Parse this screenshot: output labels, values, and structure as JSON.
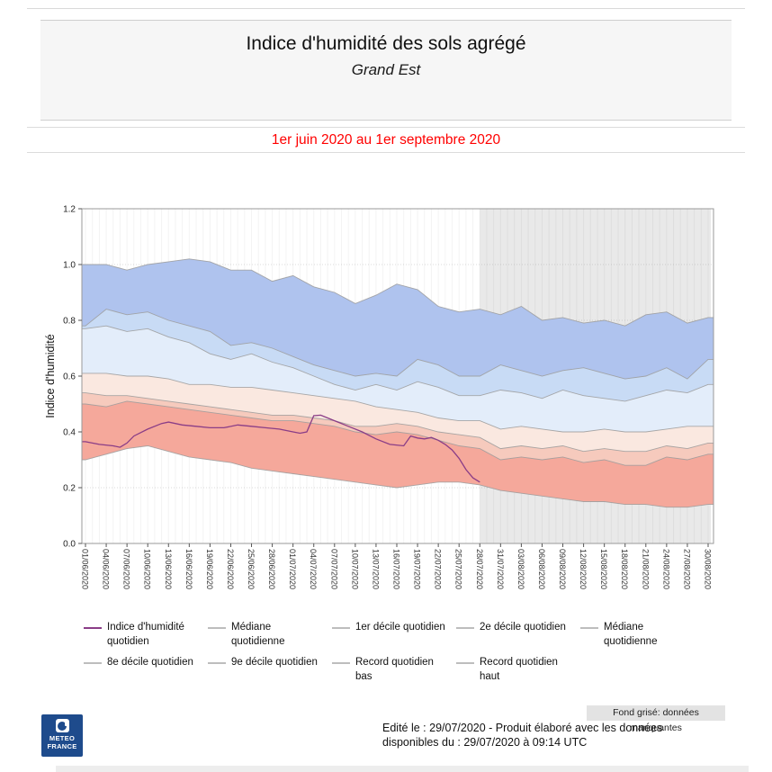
{
  "header": {
    "title": "Indice d'humidité des sols agrégé",
    "subtitle": "Grand Est",
    "period": "1er juin 2020 au 1er septembre 2020"
  },
  "chart_data": {
    "type": "area",
    "title": "Indice d'humidité des sols agrégé - Grand Est",
    "ylabel": "Indice d'humidité",
    "ylim": [
      0,
      1.2
    ],
    "y_tick_labels": [
      "0.0",
      "0.2",
      "0.4",
      "0.6",
      "0.8",
      "1.0",
      "1.2"
    ],
    "x_tick_labels": [
      "01/06/2020",
      "04/06/2020",
      "07/06/2020",
      "10/06/2020",
      "13/06/2020",
      "16/06/2020",
      "19/06/2020",
      "22/06/2020",
      "25/06/2020",
      "28/06/2020",
      "01/07/2020",
      "04/07/2020",
      "07/07/2020",
      "10/07/2020",
      "13/07/2020",
      "16/07/2020",
      "19/07/2020",
      "22/07/2020",
      "25/07/2020",
      "28/07/2020",
      "31/07/2020",
      "03/08/2020",
      "06/08/2020",
      "09/08/2020",
      "12/08/2020",
      "15/08/2020",
      "18/08/2020",
      "21/08/2020",
      "24/08/2020",
      "27/08/2020",
      "30/08/2020"
    ],
    "x_days_step": 3,
    "missing_start_day": 57,
    "grid": true,
    "legend_position": "bottom",
    "boundaries": [
      {
        "name": "Record quotidien haut",
        "values": [
          1.0,
          1.0,
          0.98,
          1.0,
          1.01,
          1.02,
          1.01,
          0.98,
          0.98,
          0.94,
          0.96,
          0.92,
          0.9,
          0.86,
          0.89,
          0.93,
          0.91,
          0.85,
          0.83,
          0.84,
          0.82,
          0.85,
          0.8,
          0.81,
          0.79,
          0.8,
          0.78,
          0.82,
          0.83,
          0.79,
          0.81
        ]
      },
      {
        "name": "9e décile quotidien",
        "values": [
          0.78,
          0.84,
          0.82,
          0.83,
          0.8,
          0.78,
          0.76,
          0.71,
          0.72,
          0.7,
          0.67,
          0.64,
          0.62,
          0.6,
          0.61,
          0.6,
          0.66,
          0.64,
          0.6,
          0.6,
          0.64,
          0.62,
          0.6,
          0.62,
          0.63,
          0.61,
          0.59,
          0.6,
          0.63,
          0.59,
          0.66
        ]
      },
      {
        "name": "8e décile quotidien",
        "values": [
          0.77,
          0.78,
          0.76,
          0.77,
          0.74,
          0.72,
          0.68,
          0.66,
          0.68,
          0.65,
          0.63,
          0.6,
          0.57,
          0.55,
          0.57,
          0.55,
          0.58,
          0.56,
          0.53,
          0.53,
          0.55,
          0.54,
          0.52,
          0.55,
          0.53,
          0.52,
          0.51,
          0.53,
          0.55,
          0.54,
          0.57
        ]
      },
      {
        "name": "Médiane quotidienne",
        "values": [
          0.61,
          0.61,
          0.6,
          0.6,
          0.59,
          0.57,
          0.57,
          0.56,
          0.56,
          0.55,
          0.54,
          0.53,
          0.52,
          0.51,
          0.49,
          0.48,
          0.47,
          0.45,
          0.44,
          0.44,
          0.41,
          0.42,
          0.41,
          0.4,
          0.4,
          0.41,
          0.4,
          0.4,
          0.41,
          0.42,
          0.42
        ]
      },
      {
        "name": "2e décile quotidien",
        "values": [
          0.54,
          0.53,
          0.53,
          0.52,
          0.51,
          0.5,
          0.49,
          0.48,
          0.47,
          0.46,
          0.46,
          0.45,
          0.44,
          0.42,
          0.42,
          0.43,
          0.42,
          0.4,
          0.39,
          0.38,
          0.34,
          0.35,
          0.34,
          0.35,
          0.33,
          0.34,
          0.33,
          0.33,
          0.35,
          0.34,
          0.36
        ]
      },
      {
        "name": "1er décile quotidien",
        "values": [
          0.5,
          0.49,
          0.51,
          0.5,
          0.49,
          0.48,
          0.47,
          0.46,
          0.45,
          0.44,
          0.44,
          0.43,
          0.42,
          0.4,
          0.39,
          0.4,
          0.39,
          0.37,
          0.35,
          0.34,
          0.3,
          0.31,
          0.3,
          0.31,
          0.29,
          0.3,
          0.28,
          0.28,
          0.31,
          0.3,
          0.32
        ]
      },
      {
        "name": "Record quotidien bas",
        "values": [
          0.3,
          0.32,
          0.34,
          0.35,
          0.33,
          0.31,
          0.3,
          0.29,
          0.27,
          0.26,
          0.25,
          0.24,
          0.23,
          0.22,
          0.21,
          0.2,
          0.21,
          0.22,
          0.22,
          0.21,
          0.19,
          0.18,
          0.17,
          0.16,
          0.15,
          0.15,
          0.14,
          0.14,
          0.13,
          0.13,
          0.14
        ]
      }
    ],
    "band_fills": [
      "#afc3ee",
      "#c8dbf5",
      "#e3edfa",
      "#fae8e0",
      "#f6cabd",
      "#f5a89b"
    ],
    "daily_line": {
      "name": "Indice d'humidité quotidien",
      "color": "#8a3d87",
      "points": [
        [
          0,
          0.365
        ],
        [
          2,
          0.355
        ],
        [
          4,
          0.35
        ],
        [
          5,
          0.345
        ],
        [
          6,
          0.36
        ],
        [
          7,
          0.385
        ],
        [
          9,
          0.41
        ],
        [
          11,
          0.43
        ],
        [
          12,
          0.435
        ],
        [
          14,
          0.425
        ],
        [
          16,
          0.42
        ],
        [
          18,
          0.415
        ],
        [
          20,
          0.415
        ],
        [
          22,
          0.425
        ],
        [
          24,
          0.42
        ],
        [
          26,
          0.415
        ],
        [
          28,
          0.41
        ],
        [
          30,
          0.4
        ],
        [
          31,
          0.395
        ],
        [
          32,
          0.4
        ],
        [
          33,
          0.458
        ],
        [
          34,
          0.46
        ],
        [
          35,
          0.45
        ],
        [
          36,
          0.44
        ],
        [
          38,
          0.42
        ],
        [
          40,
          0.4
        ],
        [
          42,
          0.375
        ],
        [
          44,
          0.355
        ],
        [
          46,
          0.35
        ],
        [
          47,
          0.385
        ],
        [
          48,
          0.378
        ],
        [
          49,
          0.375
        ],
        [
          50,
          0.38
        ],
        [
          51,
          0.37
        ],
        [
          52,
          0.355
        ],
        [
          53,
          0.335
        ],
        [
          54,
          0.305
        ],
        [
          55,
          0.265
        ],
        [
          56,
          0.235
        ],
        [
          57,
          0.22
        ]
      ]
    },
    "colors": {
      "missing_fill": "#e9e9e9",
      "boundary_stroke": "#9b9b9b",
      "plot_border": "#999999",
      "tick_text": "#333333"
    }
  },
  "legend": {
    "rows": [
      [
        {
          "label": "Indice d'humidité\nquotidien",
          "color": "#8a3d87"
        },
        {
          "label": "Médiane\nquotidienne",
          "color": "#bdbdbd"
        },
        {
          "label": "1er décile quotidien",
          "color": "#bdbdbd"
        },
        {
          "label": "2e décile quotidien",
          "color": "#bdbdbd"
        },
        {
          "label": "Médiane\nquotidienne",
          "color": "#bdbdbd"
        }
      ],
      [
        {
          "label": "8e décile quotidien",
          "color": "#bdbdbd"
        },
        {
          "label": "9e décile quotidien",
          "color": "#bdbdbd"
        },
        {
          "label": "Record quotidien\nbas",
          "color": "#bdbdbd"
        },
        {
          "label": "Record quotidien\nhaut",
          "color": "#bdbdbd"
        }
      ]
    ]
  },
  "note": {
    "missing_data": "Fond grisé: données manquantes"
  },
  "footer": {
    "line1": "Edité le : 29/07/2020 - Produit élaboré avec les données",
    "line2": "disponibles du : 29/07/2020 à 09:14 UTC"
  },
  "logo": {
    "line1": "METEO",
    "line2": "FRANCE"
  }
}
